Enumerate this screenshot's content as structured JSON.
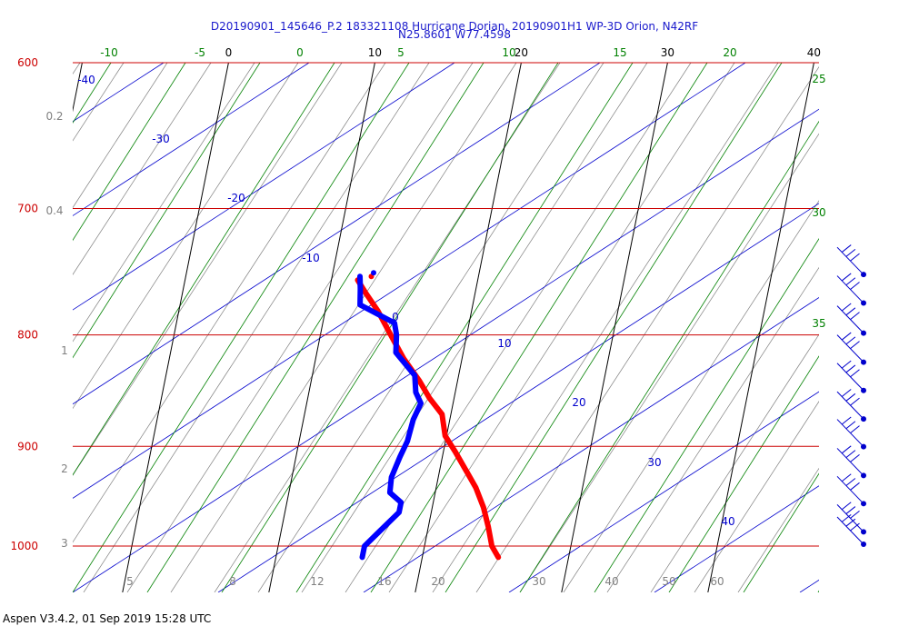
{
  "title": "D20190901_145646_P.2 183321108 Hurricane Dorian, 20190901H1 WP-3D Orion, N42RF",
  "subtitle": "N25.8601 W77.4598",
  "footer": "Aspen V3.4.2, 01 Sep 2019  15:28 UTC",
  "colors": {
    "isobar": "#cc0000",
    "isotherm_label": "#000000",
    "dry_adiabat": "#0000cc",
    "moist_adiabat": "#008000",
    "mixing_ratio": "#808080",
    "temperature": "#ff0000",
    "dewpoint": "#0000ff",
    "wind_barb": "#0000cc"
  },
  "chart_data": {
    "type": "skew-t",
    "pressure_levels": {
      "labels": [
        "600",
        "700",
        "800",
        "900",
        "1000"
      ],
      "values": [
        600,
        700,
        800,
        900,
        1000
      ]
    },
    "isotherm_labels": {
      "labels": [
        "0",
        "10",
        "20",
        "30",
        "40"
      ],
      "values": [
        0,
        10,
        20,
        30,
        40
      ]
    },
    "moist_adiabat_top_labels": [
      "-10",
      "-5",
      "0",
      "5",
      "10",
      "15",
      "20"
    ],
    "moist_adiabat_right_labels": [
      "25",
      "30",
      "35"
    ],
    "dry_adiabat_labels": [
      "-40",
      "-30",
      "-20",
      "-10",
      "0",
      "10",
      "20",
      "30",
      "40"
    ],
    "mixing_ratio_left_labels": [
      "0.2",
      "0.4",
      "1",
      "2",
      "3"
    ],
    "mixing_ratio_bottom_labels": [
      "5",
      "8",
      "12",
      "16",
      "20",
      "30",
      "40",
      "50",
      "60"
    ],
    "series": [
      {
        "name": "temperature",
        "points": [
          {
            "p": 1012,
            "t": 25.2
          },
          {
            "p": 1000,
            "t": 24.6
          },
          {
            "p": 980,
            "t": 24.1
          },
          {
            "p": 960,
            "t": 23.5
          },
          {
            "p": 940,
            "t": 22.7
          },
          {
            "p": 925,
            "t": 21.9
          },
          {
            "p": 905,
            "t": 20.8
          },
          {
            "p": 890,
            "t": 19.9
          },
          {
            "p": 870,
            "t": 19.4
          },
          {
            "p": 855,
            "t": 18.3
          },
          {
            "p": 840,
            "t": 17.4
          },
          {
            "p": 820,
            "t": 16.0
          },
          {
            "p": 800,
            "t": 14.8
          },
          {
            "p": 780,
            "t": 13.6
          },
          {
            "p": 765,
            "t": 12.5
          },
          {
            "p": 755,
            "t": 11.8
          }
        ]
      },
      {
        "name": "dewpoint",
        "points": [
          {
            "p": 1012,
            "t": 15.9
          },
          {
            "p": 1000,
            "t": 15.9
          },
          {
            "p": 985,
            "t": 16.7
          },
          {
            "p": 965,
            "t": 17.8
          },
          {
            "p": 955,
            "t": 17.8
          },
          {
            "p": 945,
            "t": 16.9
          },
          {
            "p": 930,
            "t": 16.8
          },
          {
            "p": 910,
            "t": 17.1
          },
          {
            "p": 895,
            "t": 17.4
          },
          {
            "p": 875,
            "t": 17.5
          },
          {
            "p": 860,
            "t": 17.8
          },
          {
            "p": 850,
            "t": 17.3
          },
          {
            "p": 835,
            "t": 17.0
          },
          {
            "p": 815,
            "t": 15.4
          },
          {
            "p": 800,
            "t": 15.2
          },
          {
            "p": 790,
            "t": 14.9
          },
          {
            "p": 775,
            "t": 12.3
          },
          {
            "p": 762,
            "t": 12.1
          },
          {
            "p": 752,
            "t": 11.9
          }
        ]
      }
    ],
    "wind_barbs": [
      {
        "p": 752
      },
      {
        "p": 775
      },
      {
        "p": 800
      },
      {
        "p": 825
      },
      {
        "p": 850
      },
      {
        "p": 876
      },
      {
        "p": 902
      },
      {
        "p": 930
      },
      {
        "p": 958
      },
      {
        "p": 987
      },
      {
        "p": 1000
      }
    ]
  }
}
